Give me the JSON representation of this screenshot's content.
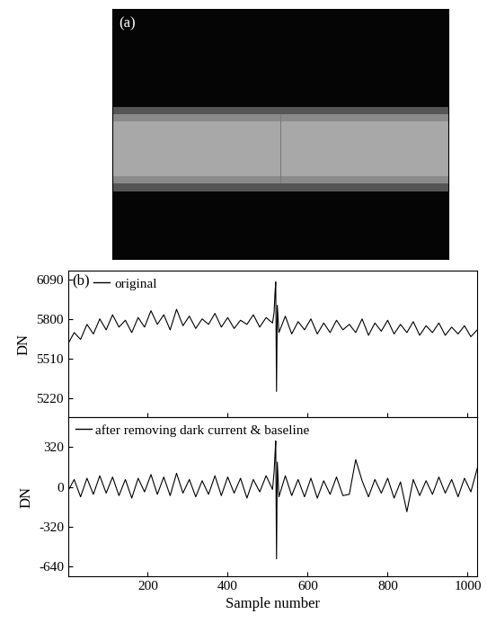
{
  "image": {
    "label": "(a)"
  },
  "chart_data": [
    {
      "type": "line",
      "annotation": "(b)",
      "ylabel": "DN",
      "legend": "upper left",
      "x": [
        1,
        16,
        32,
        48,
        64,
        80,
        96,
        112,
        128,
        144,
        160,
        176,
        192,
        208,
        224,
        240,
        256,
        272,
        288,
        304,
        320,
        336,
        352,
        368,
        384,
        400,
        416,
        432,
        448,
        464,
        480,
        496,
        512,
        516,
        518,
        520,
        522,
        524,
        528,
        544,
        560,
        576,
        592,
        608,
        624,
        640,
        656,
        672,
        688,
        704,
        720,
        736,
        752,
        768,
        784,
        800,
        816,
        832,
        848,
        864,
        880,
        896,
        912,
        928,
        944,
        960,
        976,
        992,
        1008,
        1024
      ],
      "series": [
        {
          "name": "original",
          "color": "#000000",
          "values": [
            5620,
            5700,
            5650,
            5760,
            5690,
            5800,
            5720,
            5830,
            5740,
            5790,
            5700,
            5810,
            5740,
            5860,
            5760,
            5830,
            5720,
            5870,
            5750,
            5820,
            5730,
            5800,
            5760,
            5840,
            5740,
            5810,
            5730,
            5790,
            5760,
            5830,
            5740,
            5810,
            5770,
            5850,
            5980,
            6070,
            5270,
            5900,
            5700,
            5820,
            5690,
            5780,
            5720,
            5800,
            5690,
            5770,
            5700,
            5790,
            5720,
            5760,
            5700,
            5800,
            5680,
            5770,
            5710,
            5790,
            5690,
            5760,
            5700,
            5780,
            5680,
            5750,
            5700,
            5770,
            5680,
            5740,
            5690,
            5750,
            5670,
            5720
          ]
        }
      ],
      "xlim": [
        1,
        1024
      ],
      "xticks": [
        200,
        400,
        600,
        800,
        1000
      ],
      "ylim": [
        5080,
        6150
      ],
      "yticks": [
        5220,
        5510,
        5800,
        6090
      ],
      "tick_labels": "y"
    },
    {
      "type": "line",
      "xlabel": "Sample number",
      "ylabel": "DN",
      "legend": "upper left",
      "x": [
        1,
        16,
        32,
        48,
        64,
        80,
        96,
        112,
        128,
        144,
        160,
        176,
        192,
        208,
        224,
        240,
        256,
        272,
        288,
        304,
        320,
        336,
        352,
        368,
        384,
        400,
        416,
        432,
        448,
        464,
        480,
        496,
        512,
        516,
        518,
        520,
        522,
        524,
        528,
        544,
        560,
        576,
        592,
        608,
        624,
        640,
        656,
        672,
        688,
        704,
        720,
        736,
        752,
        768,
        784,
        800,
        816,
        832,
        848,
        864,
        880,
        896,
        912,
        928,
        944,
        960,
        976,
        992,
        1008,
        1024
      ],
      "series": [
        {
          "name": "after removing dark current & baseline",
          "color": "#000000",
          "values": [
            -30,
            60,
            -80,
            70,
            -60,
            90,
            -50,
            80,
            -70,
            60,
            -90,
            70,
            -40,
            100,
            -60,
            80,
            -70,
            110,
            -50,
            60,
            -80,
            50,
            -60,
            90,
            -70,
            80,
            -50,
            70,
            -90,
            60,
            -40,
            90,
            -20,
            120,
            250,
            370,
            -580,
            200,
            -80,
            90,
            -70,
            60,
            -80,
            70,
            -90,
            50,
            -60,
            80,
            -70,
            -60,
            220,
            50,
            -80,
            60,
            -50,
            70,
            -90,
            40,
            -200,
            60,
            -70,
            50,
            -60,
            80,
            -50,
            60,
            -80,
            70,
            -40,
            150
          ]
        }
      ],
      "xlim": [
        1,
        1024
      ],
      "xticks": [
        200,
        400,
        600,
        800,
        1000
      ],
      "ylim": [
        -720,
        560
      ],
      "yticks": [
        320,
        0,
        -320,
        -640
      ]
    }
  ]
}
